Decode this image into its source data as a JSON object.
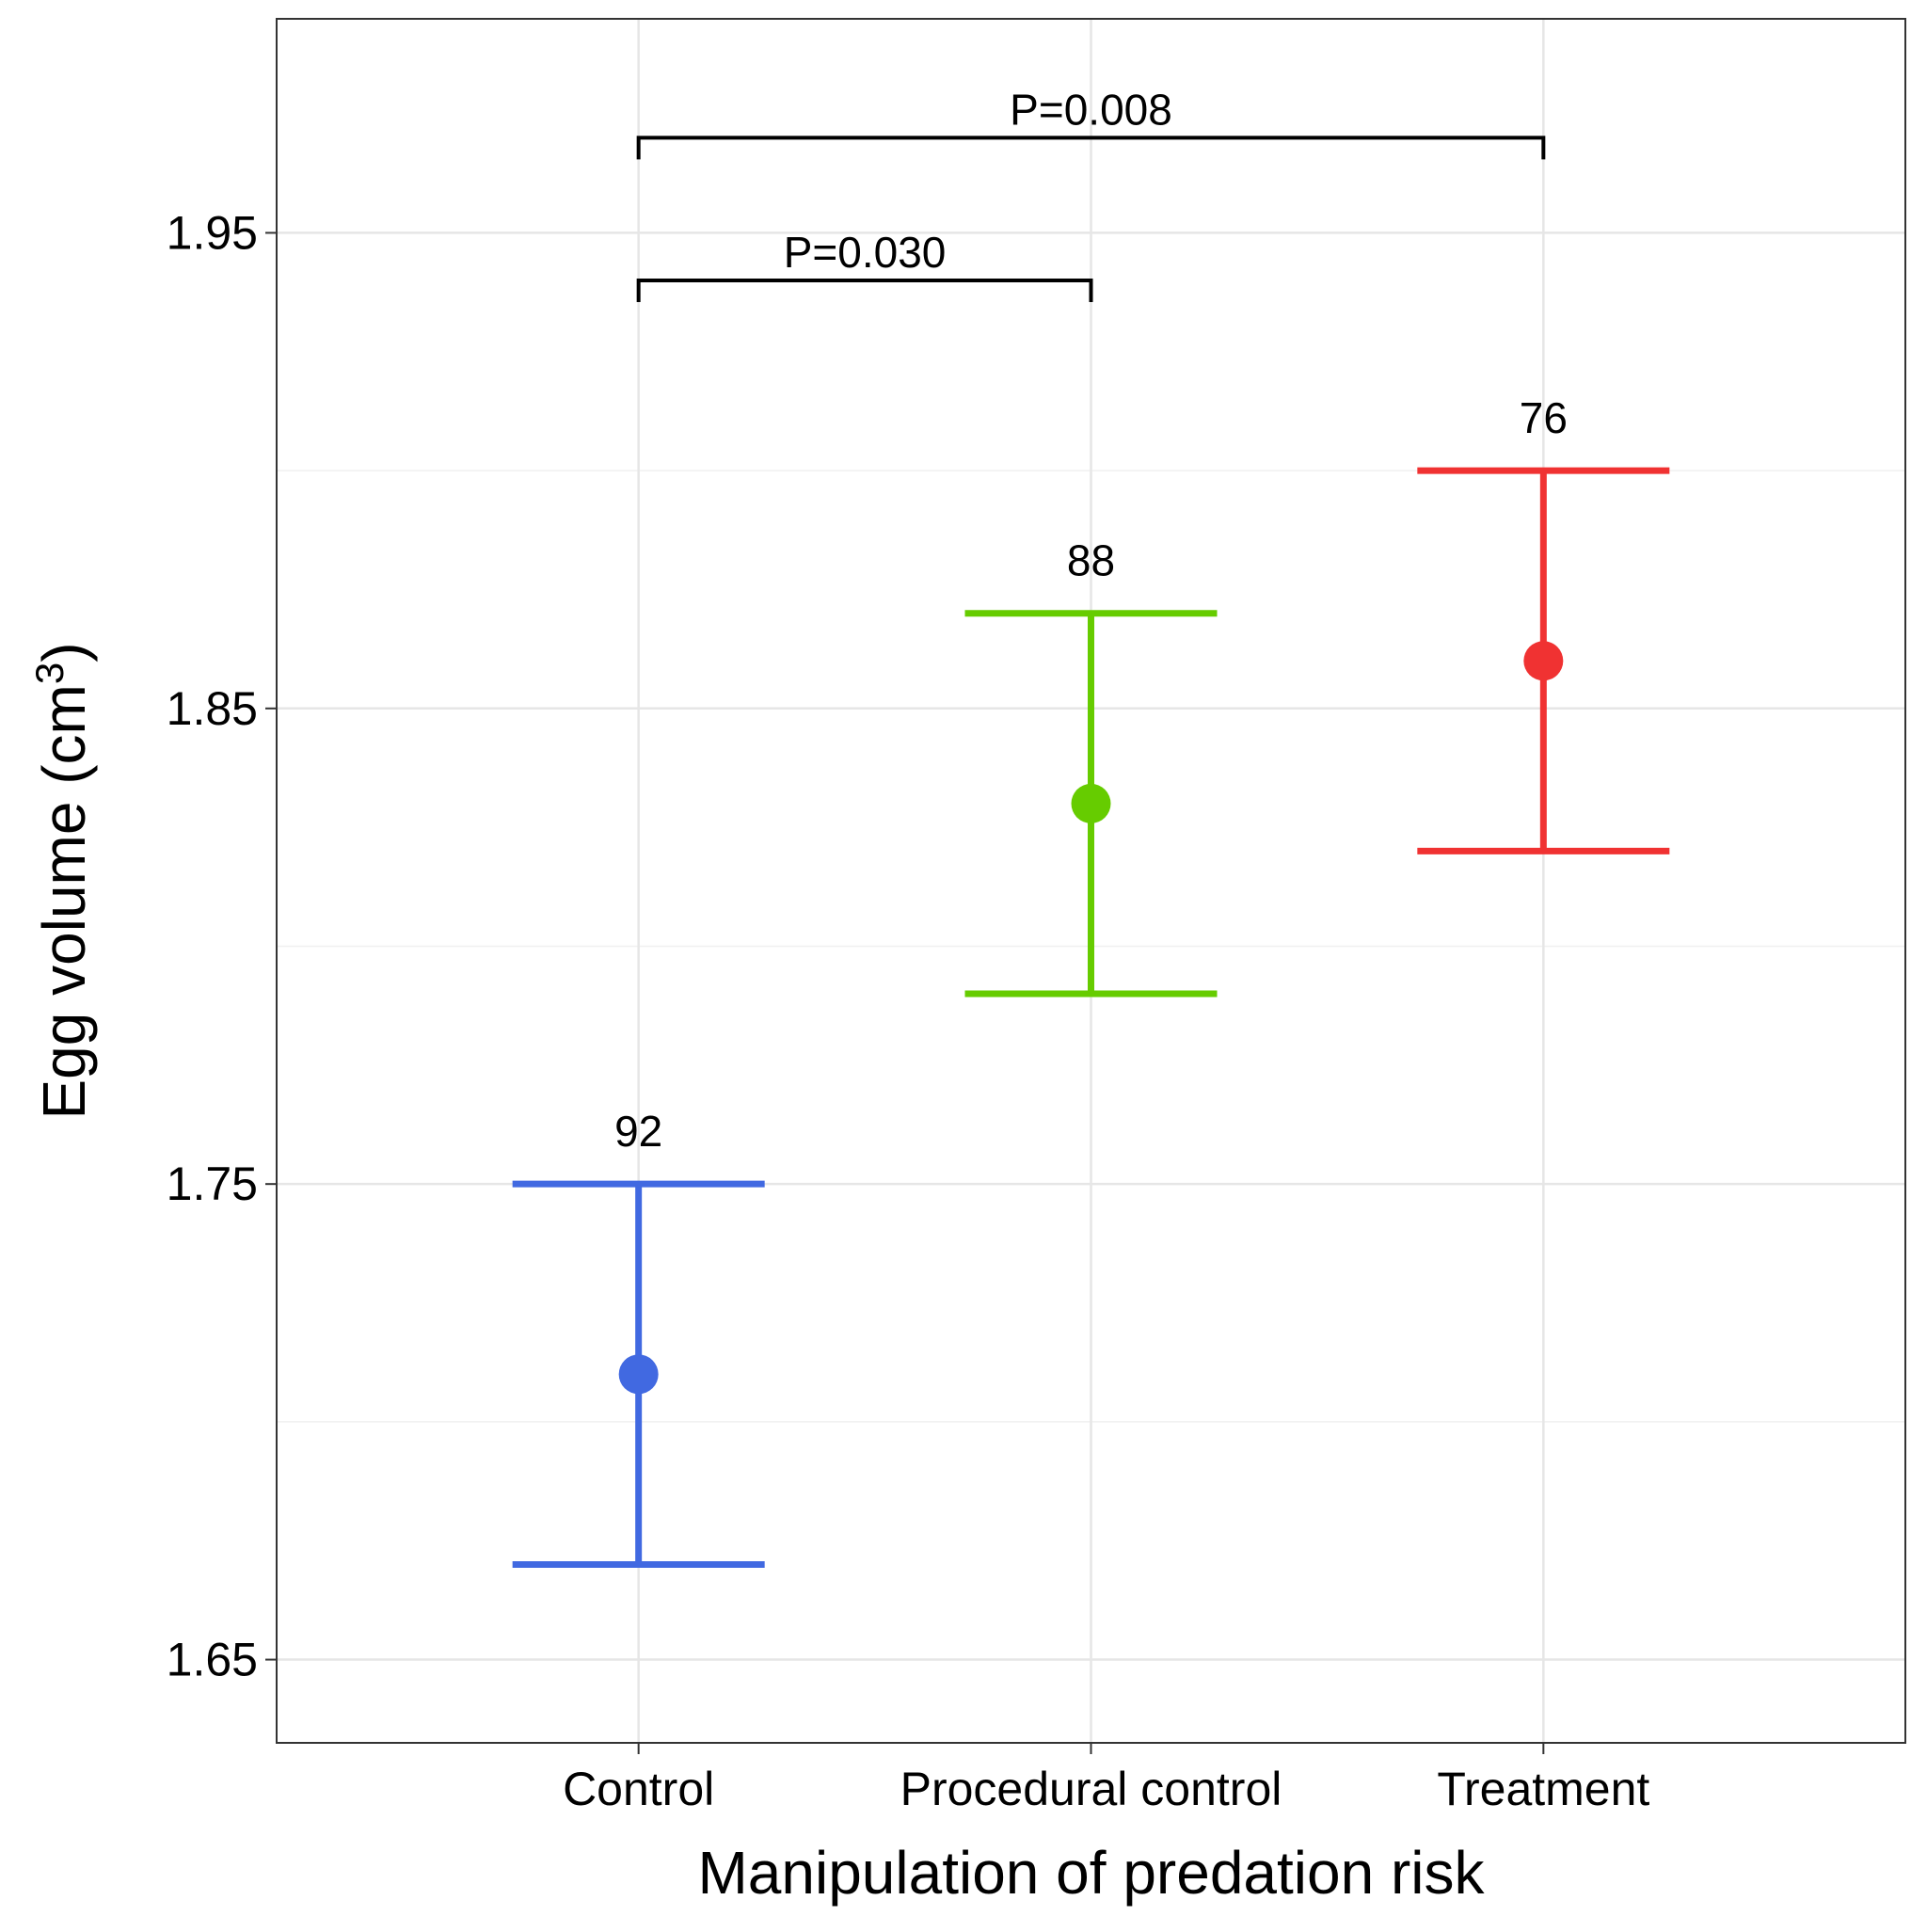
{
  "chart_data": {
    "type": "scatter",
    "xlabel": "Manipulation of predation risk",
    "ylabel": "Egg volume (cm",
    "ylabel_superscript": "3",
    "ylabel_close": ")",
    "ylim": [
      1.6325,
      1.995
    ],
    "yticks": [
      1.65,
      1.75,
      1.85,
      1.95
    ],
    "ytick_labels": [
      "1.65",
      "1.75",
      "1.85",
      "1.95"
    ],
    "grid": true,
    "categories": [
      "Control",
      "Procedural control",
      "Treatment"
    ],
    "points": [
      {
        "category": "Control",
        "mean": 1.71,
        "lower": 1.67,
        "upper": 1.75,
        "n_label": "92",
        "color": "#4169e1"
      },
      {
        "category": "Procedural control",
        "mean": 1.83,
        "lower": 1.79,
        "upper": 1.87,
        "n_label": "88",
        "color": "#66cc00"
      },
      {
        "category": "Treatment",
        "mean": 1.86,
        "lower": 1.82,
        "upper": 1.9,
        "n_label": "76",
        "color": "#f03232"
      }
    ],
    "annotations": [
      {
        "from": "Control",
        "to": "Procedural control",
        "level": 1.94,
        "label": "P=0.030"
      },
      {
        "from": "Control",
        "to": "Treatment",
        "level": 1.97,
        "label": "P=0.008"
      }
    ]
  }
}
